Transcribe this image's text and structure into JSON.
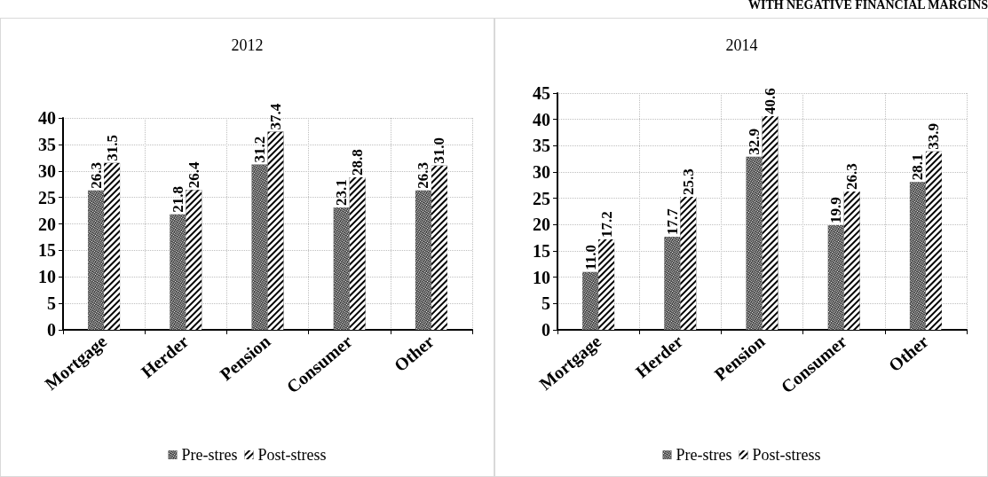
{
  "chart_data": [
    {
      "type": "bar",
      "title": "2012",
      "categories": [
        "Mortgage",
        "Herder",
        "Pension",
        "Consumer",
        "Other"
      ],
      "series": [
        {
          "name": "Pre-stres",
          "color": "#404040",
          "values": [
            26.3,
            21.8,
            31.2,
            23.1,
            26.3
          ],
          "value_labels": [
            "26.3",
            "21.8",
            "31.2",
            "23.1",
            "26.3"
          ]
        },
        {
          "name": "Post-stress",
          "color": "#000000",
          "values": [
            31.5,
            26.4,
            37.4,
            28.8,
            31.0
          ],
          "value_labels": [
            "31.5",
            "26.4",
            "37.4",
            "28.8",
            "31.0"
          ]
        }
      ],
      "ylim": [
        0,
        40
      ],
      "yticks": [
        0,
        5,
        10,
        15,
        20,
        25,
        30,
        35,
        40
      ],
      "grid": true,
      "legend": "bottom"
    },
    {
      "type": "bar",
      "title": "2014",
      "categories": [
        "Mortgage",
        "Herder",
        "Pension",
        "Consumer",
        "Other"
      ],
      "series": [
        {
          "name": "Pre-stres",
          "color": "#404040",
          "values": [
            11.0,
            17.7,
            32.9,
            19.9,
            28.1
          ],
          "value_labels": [
            "11.0",
            "17.7",
            "32.9",
            "19.9",
            "28.1"
          ]
        },
        {
          "name": "Post-stress",
          "color": "#000000",
          "values": [
            17.2,
            25.3,
            40.6,
            26.3,
            33.9
          ],
          "value_labels": [
            "17.2",
            "25.3",
            "40.6",
            "26.3",
            "33.9"
          ]
        }
      ],
      "ylim": [
        0,
        45
      ],
      "yticks": [
        0,
        5,
        10,
        15,
        20,
        25,
        30,
        35,
        40,
        45
      ],
      "grid": true,
      "legend": "bottom",
      "annotations": [
        "WITH NEGATIVE FINANCIAL MARGINS"
      ]
    }
  ]
}
